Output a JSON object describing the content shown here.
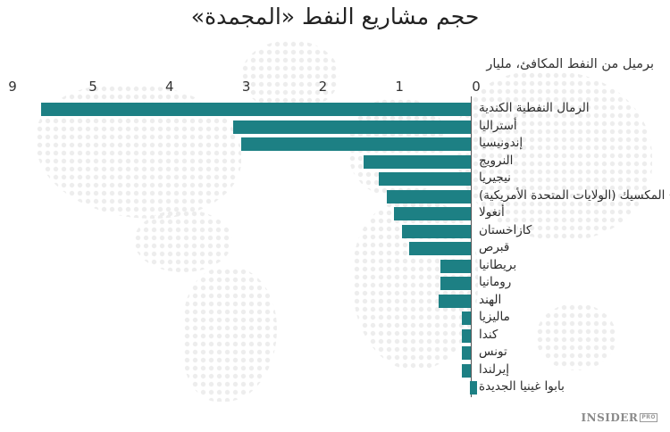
{
  "header": {
    "title": "حجم مشاريع النفط «المجمدة»",
    "subtitle": "برميل من النفط المكافئ، مليار"
  },
  "logo": {
    "name": "INSIDER",
    "badge": "PRO"
  },
  "colors": {
    "bar": "#1d8084",
    "axis": "#555555",
    "map_dots": "#ececec"
  },
  "chart_data": {
    "type": "bar",
    "orientation": "horizontal",
    "title": "حجم مشاريع النفط «المجمدة»",
    "xlabel": "برميل من النفط المكافئ، مليار",
    "ylabel": "",
    "axis_ticks": [
      "0",
      "1",
      "2",
      "3",
      "4",
      "5",
      "9"
    ],
    "axis_note": "Non-linear axis: break between 5 and 9",
    "grid": false,
    "legend": null,
    "categories": [
      "الرمال النفطية الكندية",
      "أستراليا",
      "إندونيسيا",
      "النرويج",
      "نيجيريا",
      "خليج المكسيك (الولايات المتحدة الأمريكية)",
      "أنغولا",
      "كازاخستان",
      "قبرص",
      "بريطانيا",
      "رومانيا",
      "الهند",
      "ماليزيا",
      "كندا",
      "تونس",
      "إيرلندا",
      "بابوا غينيا الجديدة"
    ],
    "values": [
      7.3,
      3.1,
      3.0,
      1.4,
      1.2,
      1.1,
      1.0,
      0.9,
      0.8,
      0.4,
      0.4,
      0.42,
      0.12,
      0.12,
      0.12,
      0.12,
      0.08
    ]
  }
}
